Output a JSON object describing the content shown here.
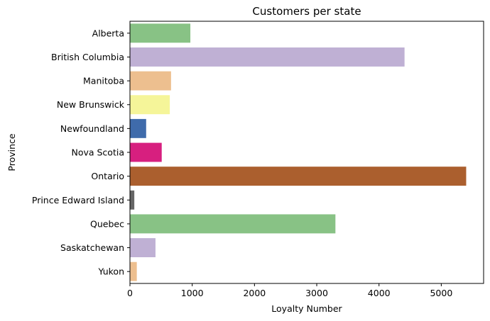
{
  "chart_data": {
    "type": "bar",
    "orientation": "horizontal",
    "title": "Customers per state",
    "xlabel": "Loyalty Number",
    "ylabel": "Province",
    "xlim": [
      0,
      5680
    ],
    "xticks": [
      0,
      1000,
      2000,
      3000,
      4000,
      5000
    ],
    "xtick_labels": [
      "0",
      "1000",
      "2000",
      "3000",
      "4000",
      "5000"
    ],
    "grid": false,
    "categories": [
      "Alberta",
      "British Columbia",
      "Manitoba",
      "New Brunswick",
      "Newfoundland",
      "Nova Scotia",
      "Ontario",
      "Prince Edward Island",
      "Quebec",
      "Saskatchewan",
      "Yukon"
    ],
    "values": [
      970,
      4410,
      660,
      640,
      260,
      510,
      5400,
      70,
      3300,
      410,
      110
    ],
    "colors": [
      "#88c285",
      "#bfb0d4",
      "#edbf8f",
      "#f5f599",
      "#3f6bab",
      "#d71f7f",
      "#ab5f2e",
      "#666666",
      "#88c285",
      "#bfb0d4",
      "#edbf8f"
    ]
  }
}
